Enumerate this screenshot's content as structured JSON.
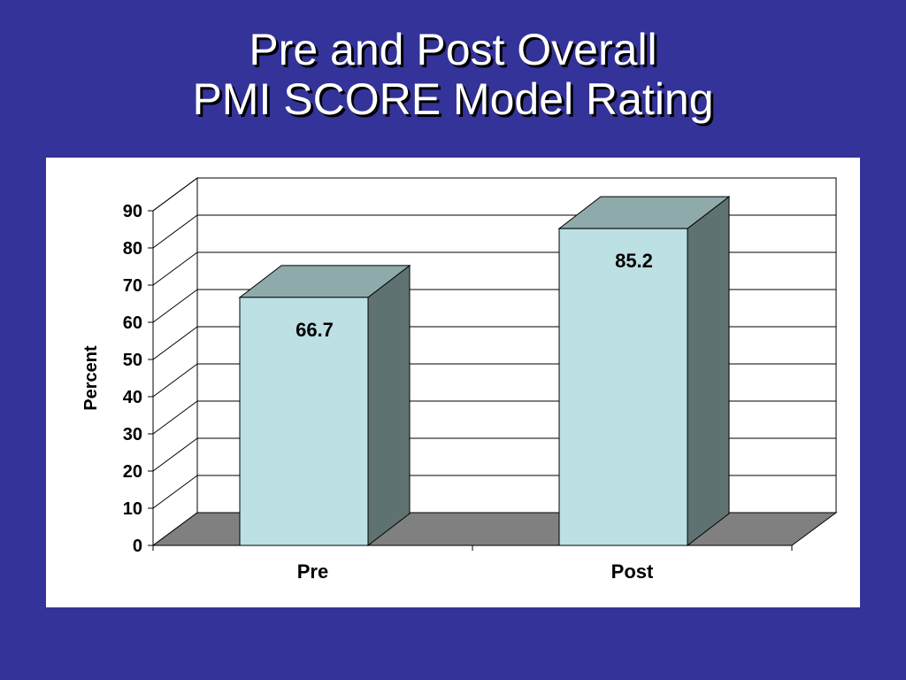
{
  "slide": {
    "title_line1": "Pre and Post Overall",
    "title_line2": "PMI SCORE Model Rating"
  },
  "colors": {
    "background": "#333399",
    "bar_front": "#BCE0E3",
    "bar_top": "#8FAAAA",
    "bar_side": "#5F7272",
    "floor": "#808080"
  },
  "chart_data": {
    "type": "bar",
    "style": "3d-column",
    "categories": [
      "Pre",
      "Post"
    ],
    "values": [
      66.7,
      85.2
    ],
    "data_labels": [
      "66.7",
      "85.2"
    ],
    "ylabel": "Percent",
    "ylim": [
      0,
      90
    ],
    "yticks": [
      0,
      10,
      20,
      30,
      40,
      50,
      60,
      70,
      80,
      90
    ],
    "grid": true,
    "legend": "none"
  }
}
